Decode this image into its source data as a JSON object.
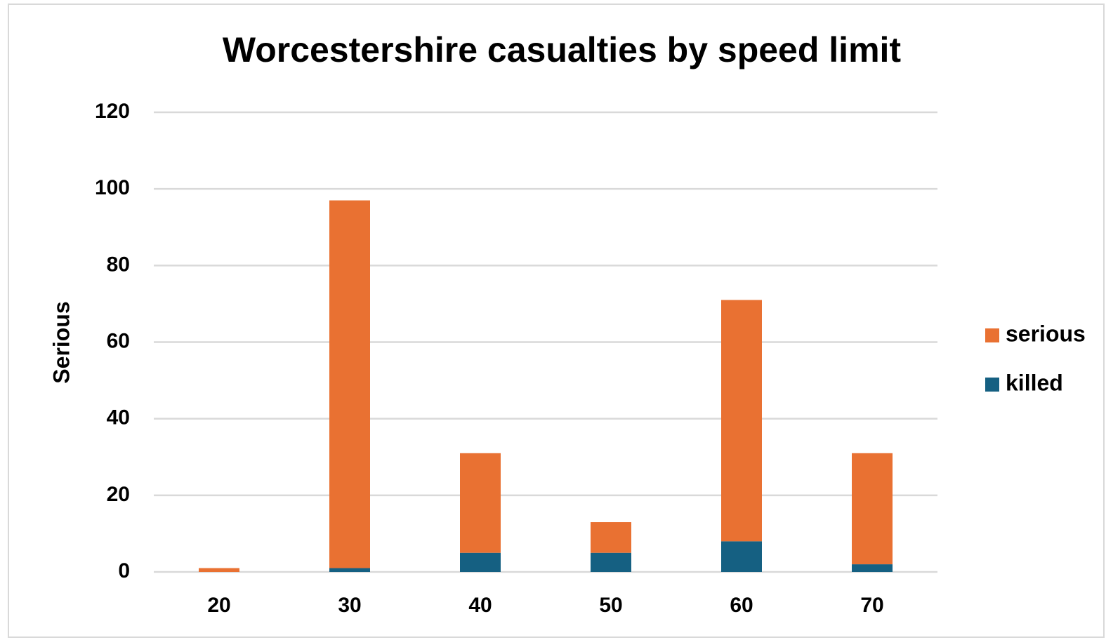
{
  "chart_data": {
    "type": "stacked_bar",
    "title": "Worcestershire casualties by speed limit",
    "y_label": "Serious",
    "categories": [
      "20",
      "30",
      "40",
      "50",
      "60",
      "70"
    ],
    "series": [
      {
        "name": "killed",
        "color": "#156082",
        "values": [
          0,
          1,
          5,
          5,
          8,
          2
        ]
      },
      {
        "name": "serious",
        "color": "#e97132",
        "values": [
          1,
          96,
          26,
          8,
          63,
          29
        ]
      }
    ],
    "ylim": [
      0,
      120
    ],
    "yticks": [
      0,
      20,
      40,
      60,
      80,
      100,
      120
    ],
    "grid": true,
    "legend": "right"
  }
}
